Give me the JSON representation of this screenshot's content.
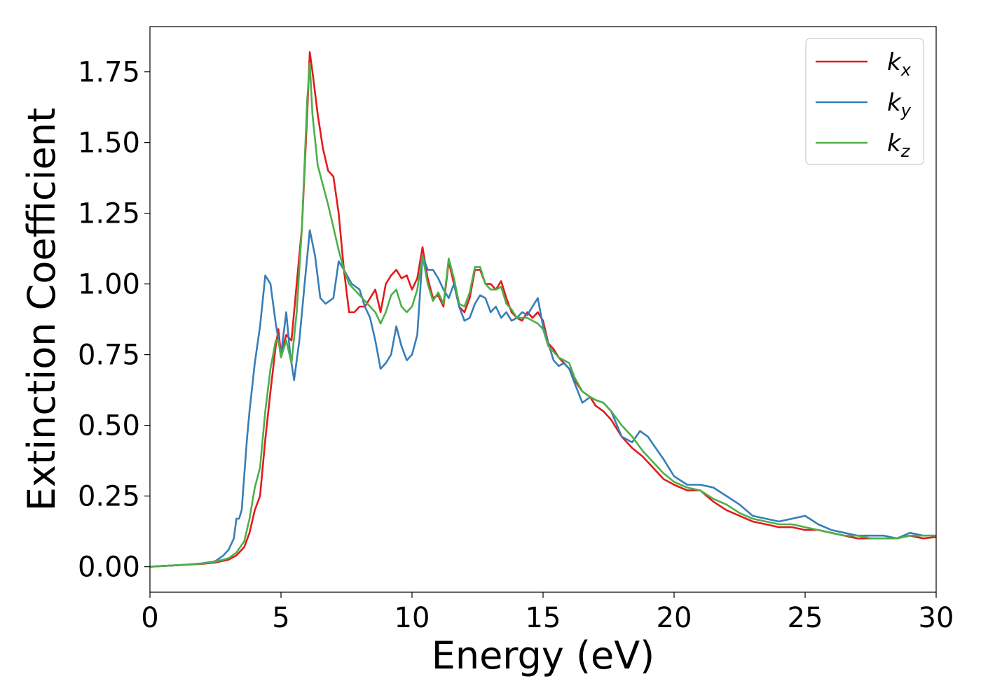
{
  "chart_data": {
    "type": "line",
    "xlabel": "Energy (eV)",
    "ylabel": "Extinction Coefficient",
    "xlim": [
      0,
      30
    ],
    "ylim": [
      -0.09,
      1.91
    ],
    "xticks": [
      0,
      5,
      10,
      15,
      20,
      25,
      30
    ],
    "yticks": [
      0.0,
      0.25,
      0.5,
      0.75,
      1.0,
      1.25,
      1.5,
      1.75
    ],
    "xtick_labels": [
      "0",
      "5",
      "10",
      "15",
      "20",
      "25",
      "30"
    ],
    "ytick_labels": [
      "0.00",
      "0.25",
      "0.50",
      "0.75",
      "1.00",
      "1.25",
      "1.50",
      "1.75"
    ],
    "grid": false,
    "legend_position": "top-right",
    "series": [
      {
        "name": "k_x",
        "legend_base": "k",
        "legend_sub": "x",
        "color": "#e41a1c",
        "x": [
          0,
          1,
          2,
          2.5,
          3,
          3.3,
          3.6,
          3.8,
          4.0,
          4.2,
          4.4,
          4.6,
          4.8,
          4.9,
          5.0,
          5.2,
          5.4,
          5.6,
          5.8,
          6.0,
          6.1,
          6.2,
          6.4,
          6.6,
          6.8,
          7.0,
          7.2,
          7.4,
          7.6,
          7.8,
          8.0,
          8.2,
          8.4,
          8.6,
          8.8,
          9.0,
          9.2,
          9.4,
          9.6,
          9.8,
          10.0,
          10.2,
          10.4,
          10.6,
          10.8,
          11.0,
          11.2,
          11.4,
          11.6,
          11.8,
          12.0,
          12.2,
          12.4,
          12.6,
          12.8,
          13.0,
          13.2,
          13.4,
          13.6,
          13.8,
          14.0,
          14.2,
          14.4,
          14.6,
          14.8,
          15.0,
          15.2,
          15.4,
          15.6,
          15.8,
          16.0,
          16.2,
          16.5,
          16.8,
          17.0,
          17.3,
          17.6,
          18.0,
          18.4,
          18.8,
          19.2,
          19.6,
          20.0,
          20.5,
          21.0,
          21.5,
          22.0,
          22.5,
          23.0,
          23.5,
          24.0,
          24.5,
          25.0,
          25.5,
          26.0,
          26.5,
          27.0,
          27.5,
          28.0,
          28.5,
          29.0,
          29.5,
          30.0
        ],
        "y": [
          0.0,
          0.005,
          0.01,
          0.015,
          0.025,
          0.04,
          0.07,
          0.12,
          0.2,
          0.25,
          0.45,
          0.62,
          0.78,
          0.84,
          0.75,
          0.82,
          0.8,
          1.0,
          1.2,
          1.6,
          1.82,
          1.75,
          1.6,
          1.48,
          1.4,
          1.38,
          1.25,
          1.05,
          0.9,
          0.9,
          0.92,
          0.92,
          0.95,
          0.98,
          0.9,
          1.0,
          1.03,
          1.05,
          1.02,
          1.03,
          0.98,
          1.02,
          1.13,
          1.02,
          0.95,
          0.96,
          0.92,
          1.08,
          1.0,
          0.92,
          0.9,
          0.95,
          1.05,
          1.05,
          1.0,
          1.0,
          0.98,
          1.01,
          0.95,
          0.9,
          0.88,
          0.87,
          0.9,
          0.88,
          0.9,
          0.87,
          0.79,
          0.77,
          0.74,
          0.72,
          0.7,
          0.66,
          0.62,
          0.6,
          0.57,
          0.55,
          0.52,
          0.46,
          0.42,
          0.39,
          0.35,
          0.31,
          0.29,
          0.27,
          0.27,
          0.23,
          0.2,
          0.18,
          0.16,
          0.15,
          0.14,
          0.14,
          0.13,
          0.13,
          0.12,
          0.11,
          0.1,
          0.1,
          0.1,
          0.1,
          0.11,
          0.1,
          0.105
        ]
      },
      {
        "name": "k_y",
        "legend_base": "k",
        "legend_sub": "y",
        "color": "#377eb8",
        "x": [
          0,
          1,
          2,
          2.5,
          2.8,
          3.0,
          3.2,
          3.3,
          3.4,
          3.5,
          3.7,
          3.8,
          4.0,
          4.2,
          4.4,
          4.6,
          4.8,
          5.0,
          5.2,
          5.35,
          5.5,
          5.7,
          5.9,
          6.1,
          6.3,
          6.5,
          6.7,
          7.0,
          7.2,
          7.4,
          7.7,
          8.0,
          8.2,
          8.4,
          8.6,
          8.8,
          9.0,
          9.2,
          9.4,
          9.6,
          9.8,
          10.0,
          10.2,
          10.4,
          10.6,
          10.8,
          11.0,
          11.2,
          11.4,
          11.6,
          11.8,
          12.0,
          12.2,
          12.4,
          12.6,
          12.8,
          13.0,
          13.2,
          13.4,
          13.6,
          13.8,
          14.0,
          14.2,
          14.4,
          14.6,
          14.8,
          15.0,
          15.2,
          15.4,
          15.6,
          15.8,
          16.0,
          16.2,
          16.5,
          16.8,
          17.0,
          17.3,
          17.6,
          18.0,
          18.4,
          18.7,
          19.0,
          19.3,
          19.6,
          20.0,
          20.5,
          21.0,
          21.5,
          22.0,
          22.5,
          23.0,
          23.5,
          24.0,
          24.5,
          25.0,
          25.5,
          26.0,
          26.5,
          27.0,
          27.5,
          28.0,
          28.5,
          29.0,
          29.5,
          30.0
        ],
        "y": [
          0.0,
          0.005,
          0.012,
          0.02,
          0.04,
          0.06,
          0.1,
          0.17,
          0.17,
          0.2,
          0.45,
          0.55,
          0.72,
          0.85,
          1.03,
          1.0,
          0.86,
          0.75,
          0.9,
          0.75,
          0.66,
          0.8,
          1.0,
          1.19,
          1.1,
          0.95,
          0.93,
          0.95,
          1.08,
          1.05,
          1.0,
          0.98,
          0.92,
          0.88,
          0.8,
          0.7,
          0.72,
          0.75,
          0.85,
          0.78,
          0.73,
          0.75,
          0.82,
          1.1,
          1.05,
          1.05,
          1.02,
          0.98,
          0.95,
          1.0,
          0.92,
          0.87,
          0.88,
          0.93,
          0.96,
          0.95,
          0.9,
          0.92,
          0.88,
          0.9,
          0.87,
          0.88,
          0.9,
          0.89,
          0.92,
          0.95,
          0.85,
          0.79,
          0.73,
          0.71,
          0.72,
          0.7,
          0.65,
          0.58,
          0.6,
          0.59,
          0.58,
          0.55,
          0.46,
          0.44,
          0.48,
          0.46,
          0.42,
          0.38,
          0.32,
          0.29,
          0.29,
          0.28,
          0.25,
          0.22,
          0.18,
          0.17,
          0.16,
          0.17,
          0.18,
          0.15,
          0.13,
          0.12,
          0.11,
          0.11,
          0.11,
          0.1,
          0.12,
          0.11,
          0.11
        ]
      },
      {
        "name": "k_z",
        "legend_base": "k",
        "legend_sub": "z",
        "color": "#4daf4a",
        "x": [
          0,
          1,
          2,
          2.5,
          3,
          3.3,
          3.6,
          3.8,
          4.0,
          4.2,
          4.4,
          4.6,
          4.8,
          4.9,
          5.0,
          5.2,
          5.4,
          5.6,
          5.8,
          6.0,
          6.1,
          6.2,
          6.4,
          6.6,
          6.8,
          7.0,
          7.2,
          7.4,
          7.6,
          7.8,
          8.0,
          8.2,
          8.4,
          8.6,
          8.8,
          9.0,
          9.2,
          9.4,
          9.6,
          9.8,
          10.0,
          10.2,
          10.4,
          10.6,
          10.8,
          11.0,
          11.2,
          11.4,
          11.6,
          11.8,
          12.0,
          12.2,
          12.4,
          12.6,
          12.8,
          13.0,
          13.2,
          13.4,
          13.6,
          13.8,
          14.0,
          14.2,
          14.4,
          14.6,
          14.8,
          15.0,
          15.2,
          15.4,
          15.6,
          15.8,
          16.0,
          16.2,
          16.5,
          16.8,
          17.0,
          17.3,
          17.6,
          18.0,
          18.4,
          18.8,
          19.2,
          19.6,
          20.0,
          20.5,
          21.0,
          21.5,
          22.0,
          22.5,
          23.0,
          23.5,
          24.0,
          24.5,
          25.0,
          25.5,
          26.0,
          26.5,
          27.0,
          27.5,
          28.0,
          28.5,
          29.0,
          29.5,
          30.0
        ],
        "y": [
          0.0,
          0.005,
          0.011,
          0.018,
          0.03,
          0.05,
          0.09,
          0.17,
          0.28,
          0.35,
          0.55,
          0.7,
          0.8,
          0.8,
          0.74,
          0.8,
          0.72,
          0.9,
          1.2,
          1.65,
          1.78,
          1.6,
          1.42,
          1.35,
          1.28,
          1.2,
          1.12,
          1.05,
          1.0,
          0.98,
          0.96,
          0.94,
          0.92,
          0.9,
          0.86,
          0.9,
          0.96,
          0.98,
          0.92,
          0.9,
          0.92,
          0.98,
          1.1,
          1.0,
          0.94,
          0.97,
          0.93,
          1.09,
          1.02,
          0.93,
          0.92,
          0.97,
          1.06,
          1.06,
          1.0,
          0.98,
          0.98,
          0.99,
          0.93,
          0.91,
          0.88,
          0.88,
          0.88,
          0.87,
          0.86,
          0.84,
          0.78,
          0.76,
          0.74,
          0.73,
          0.72,
          0.67,
          0.62,
          0.6,
          0.59,
          0.58,
          0.55,
          0.5,
          0.46,
          0.41,
          0.37,
          0.33,
          0.3,
          0.28,
          0.27,
          0.24,
          0.22,
          0.19,
          0.17,
          0.16,
          0.15,
          0.15,
          0.14,
          0.13,
          0.12,
          0.11,
          0.11,
          0.1,
          0.1,
          0.1,
          0.11,
          0.11,
          0.11
        ]
      }
    ]
  }
}
